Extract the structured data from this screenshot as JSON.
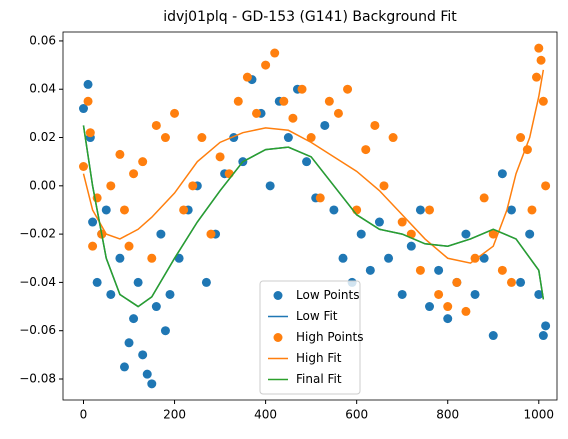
{
  "chart_data": {
    "type": "scatter-line",
    "title": "idvj01plq - GD-153 (G141) Background Fit",
    "xlim": [
      -45,
      1040
    ],
    "ylim": [
      -0.0887,
      0.0637
    ],
    "xticks": [
      0,
      200,
      400,
      600,
      800,
      1000
    ],
    "yticks": [
      {
        "value": 0.06,
        "label": "0.06"
      },
      {
        "value": 0.04,
        "label": "0.04"
      },
      {
        "value": 0.02,
        "label": "0.02"
      },
      {
        "value": 0,
        "label": "0.00"
      },
      {
        "value": -0.02,
        "label": "−0.02"
      },
      {
        "value": -0.04,
        "label": "−0.04"
      },
      {
        "value": -0.06,
        "label": "−0.06"
      },
      {
        "value": -0.08,
        "label": "−0.08"
      }
    ],
    "grid": false,
    "legend": "lower center",
    "series": [
      {
        "name": "Low Points",
        "kind": "scatter",
        "color": "#1f77b4",
        "x": [
          0,
          10,
          15,
          20,
          30,
          40,
          50,
          60,
          80,
          90,
          100,
          110,
          120,
          130,
          140,
          150,
          160,
          170,
          180,
          190,
          210,
          230,
          250,
          270,
          290,
          310,
          330,
          350,
          370,
          390,
          410,
          430,
          450,
          470,
          490,
          510,
          530,
          550,
          570,
          590,
          610,
          630,
          650,
          670,
          700,
          720,
          740,
          760,
          780,
          800,
          820,
          840,
          860,
          880,
          900,
          920,
          940,
          960,
          980,
          1000,
          1010,
          1015
        ],
        "values": [
          0.032,
          0.042,
          0.02,
          -0.015,
          -0.04,
          -0.02,
          -0.01,
          -0.045,
          -0.03,
          -0.075,
          -0.065,
          -0.055,
          -0.04,
          -0.07,
          -0.078,
          -0.082,
          -0.05,
          -0.02,
          -0.06,
          -0.045,
          -0.03,
          -0.01,
          0.0,
          -0.04,
          -0.02,
          0.005,
          0.02,
          0.01,
          0.044,
          0.03,
          0.0,
          0.035,
          0.02,
          0.04,
          0.01,
          -0.005,
          0.025,
          -0.01,
          -0.03,
          -0.04,
          -0.02,
          -0.035,
          -0.015,
          -0.03,
          -0.045,
          -0.025,
          -0.01,
          -0.05,
          -0.035,
          -0.055,
          -0.04,
          -0.02,
          -0.045,
          -0.03,
          -0.062,
          0.005,
          -0.01,
          -0.04,
          -0.02,
          -0.045,
          -0.062,
          -0.058
        ]
      },
      {
        "name": "Low Fit",
        "kind": "line",
        "color": "#1f77b4",
        "x": [
          0,
          20,
          50,
          80,
          120,
          150,
          200,
          250,
          300,
          350,
          400,
          450,
          500,
          550,
          600,
          650,
          700,
          750,
          800,
          850,
          900,
          950,
          1000,
          1010
        ],
        "values": [
          0.025,
          0.0,
          -0.03,
          -0.045,
          -0.05,
          -0.046,
          -0.03,
          -0.015,
          -0.002,
          0.01,
          0.015,
          0.016,
          0.012,
          0.0,
          -0.012,
          -0.018,
          -0.02,
          -0.024,
          -0.025,
          -0.022,
          -0.018,
          -0.022,
          -0.035,
          -0.047
        ]
      },
      {
        "name": "High Points",
        "kind": "scatter",
        "color": "#ff7f0e",
        "x": [
          0,
          10,
          15,
          20,
          30,
          40,
          60,
          80,
          90,
          100,
          110,
          130,
          150,
          160,
          180,
          200,
          220,
          240,
          260,
          280,
          300,
          320,
          340,
          360,
          380,
          400,
          420,
          440,
          460,
          480,
          500,
          520,
          540,
          560,
          580,
          600,
          620,
          640,
          660,
          680,
          700,
          720,
          740,
          760,
          780,
          800,
          820,
          840,
          860,
          880,
          900,
          920,
          940,
          960,
          975,
          985,
          995,
          1000,
          1005,
          1010,
          1015
        ],
        "values": [
          0.008,
          0.035,
          0.022,
          -0.025,
          -0.005,
          -0.02,
          0.0,
          0.013,
          -0.01,
          -0.025,
          0.005,
          0.01,
          -0.03,
          0.025,
          0.02,
          0.03,
          -0.01,
          0.0,
          0.02,
          -0.02,
          0.012,
          0.005,
          0.035,
          0.045,
          0.03,
          0.05,
          0.055,
          0.035,
          0.028,
          0.04,
          0.02,
          -0.005,
          0.035,
          0.03,
          0.04,
          -0.01,
          0.015,
          0.025,
          0.0,
          0.02,
          -0.015,
          -0.02,
          -0.035,
          -0.01,
          -0.045,
          -0.05,
          -0.04,
          -0.052,
          -0.03,
          -0.005,
          -0.02,
          -0.035,
          -0.04,
          0.02,
          0.015,
          -0.01,
          0.045,
          0.057,
          0.052,
          0.035,
          0.0
        ]
      },
      {
        "name": "High Fit",
        "kind": "line",
        "color": "#ff7f0e",
        "x": [
          0,
          20,
          50,
          80,
          120,
          150,
          200,
          250,
          300,
          350,
          400,
          450,
          500,
          550,
          600,
          650,
          700,
          750,
          800,
          850,
          900,
          930,
          950,
          980,
          1000,
          1010
        ],
        "values": [
          0.005,
          -0.01,
          -0.02,
          -0.022,
          -0.018,
          -0.013,
          -0.003,
          0.01,
          0.018,
          0.022,
          0.024,
          0.023,
          0.018,
          0.012,
          0.006,
          -0.002,
          -0.012,
          -0.022,
          -0.03,
          -0.032,
          -0.025,
          -0.01,
          0.005,
          0.02,
          0.037,
          0.048
        ]
      },
      {
        "name": "Final Fit",
        "kind": "line",
        "color": "#2ca02c",
        "x": [
          0,
          20,
          50,
          80,
          120,
          150,
          200,
          250,
          300,
          350,
          400,
          450,
          500,
          550,
          600,
          650,
          700,
          750,
          800,
          850,
          900,
          950,
          1000,
          1010
        ],
        "values": [
          0.025,
          0.0,
          -0.03,
          -0.045,
          -0.05,
          -0.046,
          -0.03,
          -0.015,
          -0.002,
          0.01,
          0.015,
          0.016,
          0.012,
          0.0,
          -0.012,
          -0.018,
          -0.02,
          -0.024,
          -0.025,
          -0.022,
          -0.018,
          -0.022,
          -0.035,
          -0.047
        ]
      }
    ]
  }
}
